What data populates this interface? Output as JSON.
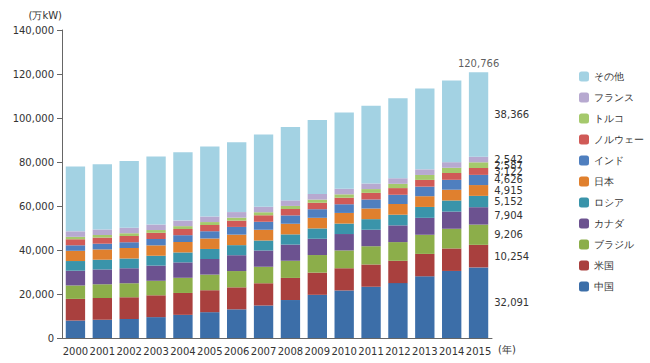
{
  "chart_data": {
    "type": "bar",
    "stacked": true,
    "grid": false,
    "legend": "right",
    "data_labels": true,
    "y_label": "(万kW)",
    "x_label": "(年)",
    "categories": [
      "2000",
      "2001",
      "2002",
      "2003",
      "2004",
      "2005",
      "2006",
      "2007",
      "2008",
      "2009",
      "2010",
      "2011",
      "2012",
      "2013",
      "2014",
      "2015"
    ],
    "ylim": [
      0,
      140000
    ],
    "yticks": [
      0,
      {
        "value": 20000,
        "label": "20,000"
      },
      {
        "value": 40000,
        "label": "40,000"
      },
      {
        "value": 60000,
        "label": "60,000"
      },
      {
        "value": 80000,
        "label": "80,000"
      },
      {
        "value": 100000,
        "label": "100,000"
      },
      {
        "value": 120000,
        "label": "120,000"
      },
      {
        "value": 140000,
        "label": "140,000"
      }
    ],
    "series": [
      {
        "name": "中国",
        "color": "#3c6ea8",
        "values": [
          7935,
          8301,
          8607,
          9490,
          10524,
          11739,
          13029,
          14823,
          17260,
          19629,
          21606,
          23298,
          24947,
          28044,
          30486,
          32091
        ],
        "value_labels": [
          null,
          null,
          null,
          null,
          null,
          null,
          null,
          null,
          null,
          null,
          null,
          null,
          null,
          null,
          null,
          "32,091"
        ]
      },
      {
        "name": "米国",
        "color": "#a9403e",
        "values": [
          9850,
          9870,
          9900,
          9920,
          9950,
          9980,
          10000,
          10020,
          10050,
          10080,
          10100,
          10120,
          10150,
          10180,
          10220,
          10254
        ],
        "value_labels": [
          null,
          null,
          null,
          null,
          null,
          null,
          null,
          null,
          null,
          null,
          null,
          null,
          null,
          null,
          null,
          "10,254"
        ]
      },
      {
        "name": "ブラジル",
        "color": "#8cae4a",
        "values": [
          6100,
          6250,
          6400,
          6600,
          6900,
          7100,
          7400,
          7600,
          7800,
          8000,
          8100,
          8300,
          8500,
          8700,
          8950,
          9206
        ],
        "value_labels": [
          null,
          null,
          null,
          null,
          null,
          null,
          null,
          null,
          null,
          null,
          null,
          null,
          null,
          null,
          null,
          "9,206"
        ]
      },
      {
        "name": "カナダ",
        "color": "#6c5290",
        "values": [
          6700,
          6750,
          6800,
          6900,
          7000,
          7100,
          7200,
          7300,
          7350,
          7400,
          7450,
          7500,
          7600,
          7700,
          7800,
          7904
        ],
        "value_labels": [
          null,
          null,
          null,
          null,
          null,
          null,
          null,
          null,
          null,
          null,
          null,
          null,
          null,
          null,
          null,
          "7,904"
        ]
      },
      {
        "name": "ロシア",
        "color": "#3a94aa",
        "values": [
          4400,
          4420,
          4450,
          4480,
          4520,
          4550,
          4580,
          4620,
          4650,
          4700,
          4750,
          4800,
          4850,
          4950,
          5050,
          5152
        ],
        "value_labels": [
          null,
          null,
          null,
          null,
          null,
          null,
          null,
          null,
          null,
          null,
          null,
          null,
          null,
          null,
          null,
          "5,152"
        ]
      },
      {
        "name": "日本",
        "color": "#e0802e",
        "values": [
          4650,
          4680,
          4700,
          4720,
          4740,
          4760,
          4780,
          4800,
          4820,
          4830,
          4840,
          4850,
          4860,
          4880,
          4900,
          4915
        ],
        "value_labels": [
          null,
          null,
          null,
          null,
          null,
          null,
          null,
          null,
          null,
          null,
          null,
          null,
          null,
          null,
          null,
          "4,915"
        ]
      },
      {
        "name": "インド",
        "color": "#4f7fbf",
        "values": [
          2500,
          2600,
          2700,
          2900,
          3100,
          3300,
          3500,
          3700,
          3800,
          3900,
          3950,
          4100,
          4200,
          4350,
          4500,
          4626
        ],
        "value_labels": [
          null,
          null,
          null,
          null,
          null,
          null,
          null,
          null,
          null,
          null,
          null,
          null,
          null,
          null,
          null,
          "4,626"
        ]
      },
      {
        "name": "ノルウェー",
        "color": "#d05a57",
        "values": [
          2750,
          2770,
          2790,
          2800,
          2820,
          2840,
          2860,
          2880,
          2900,
          2930,
          2960,
          3000,
          3030,
          3060,
          3090,
          3122
        ],
        "value_labels": [
          null,
          null,
          null,
          null,
          null,
          null,
          null,
          null,
          null,
          null,
          null,
          null,
          null,
          null,
          null,
          "3,122"
        ]
      },
      {
        "name": "トルコ",
        "color": "#a5c96c",
        "values": [
          1100,
          1170,
          1220,
          1260,
          1290,
          1330,
          1360,
          1380,
          1400,
          1450,
          1550,
          1720,
          1950,
          2250,
          2380,
          2587
        ],
        "value_labels": [
          null,
          null,
          null,
          null,
          null,
          null,
          null,
          null,
          null,
          null,
          null,
          null,
          null,
          null,
          null,
          "2,587"
        ]
      },
      {
        "name": "フランス",
        "color": "#b7a9d0",
        "values": [
          2500,
          2500,
          2510,
          2510,
          2510,
          2520,
          2520,
          2520,
          2520,
          2530,
          2530,
          2530,
          2530,
          2540,
          2540,
          2542
        ],
        "value_labels": [
          null,
          null,
          null,
          null,
          null,
          null,
          null,
          null,
          null,
          null,
          null,
          null,
          null,
          null,
          null,
          "2,542"
        ]
      },
      {
        "name": "その他",
        "color": "#a3d2e3",
        "values": [
          29500,
          29700,
          30400,
          30900,
          31100,
          31800,
          31800,
          32900,
          33400,
          33600,
          34700,
          35300,
          36400,
          36800,
          37100,
          38366
        ],
        "value_labels": [
          null,
          null,
          null,
          null,
          null,
          null,
          null,
          null,
          null,
          null,
          null,
          null,
          null,
          null,
          null,
          "38,366"
        ]
      }
    ],
    "annotations": [
      {
        "category": "2015",
        "value": 120766,
        "label": "120,766"
      }
    ]
  }
}
